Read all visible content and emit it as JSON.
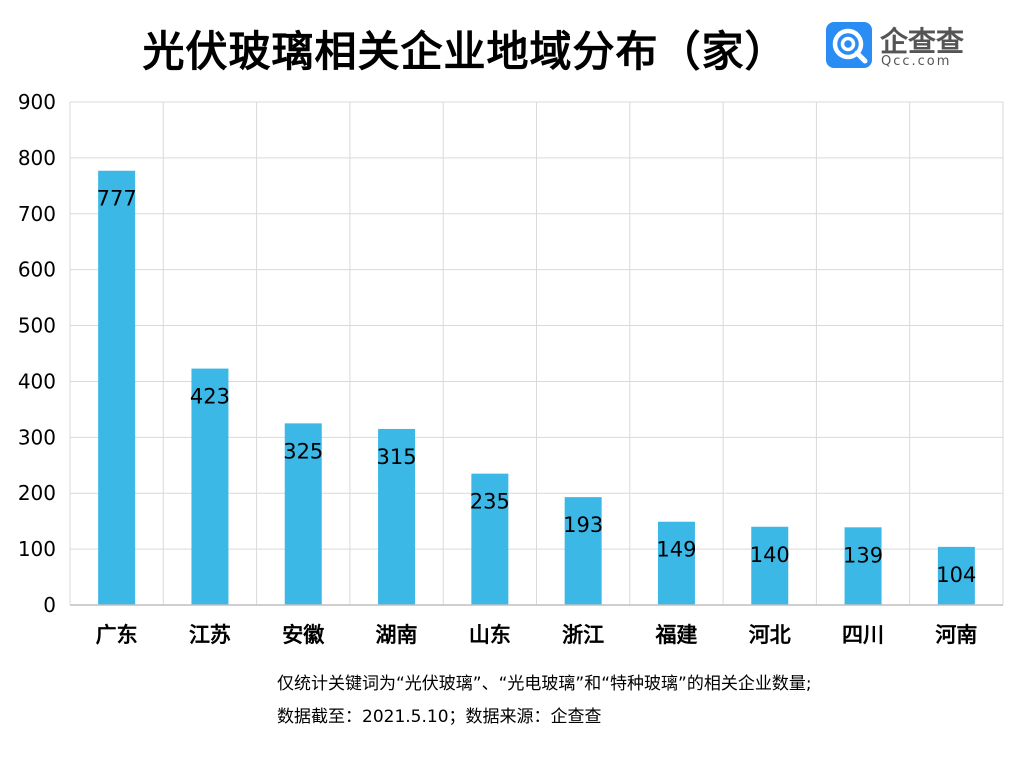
{
  "title": "光伏玻璃相关企业地域分布（家）",
  "logo": {
    "name": "企查查",
    "domain": "Qcc.com",
    "icon": "qcc-logo-icon",
    "color": "#2a8df3"
  },
  "colors": {
    "bar": "#3cb8e6",
    "grid": "#d9d9d9",
    "axis": "#bfbfbf",
    "text": "#000000"
  },
  "chart_data": {
    "type": "bar",
    "title": "光伏玻璃相关企业地域分布（家）",
    "xlabel": "",
    "ylabel": "",
    "categories": [
      "广东",
      "江苏",
      "安徽",
      "湖南",
      "山东",
      "浙江",
      "福建",
      "河北",
      "四川",
      "河南"
    ],
    "values": [
      777,
      423,
      325,
      315,
      235,
      193,
      149,
      140,
      139,
      104
    ],
    "ylim": [
      0,
      900
    ],
    "yticks": [
      0,
      100,
      200,
      300,
      400,
      500,
      600,
      700,
      800,
      900
    ],
    "grid": true,
    "legend": "none",
    "data_labels": true
  },
  "notes": [
    "仅统计关键词为“光伏玻璃”、“光电玻璃”和“特种玻璃”的相关企业数量;",
    "数据截至：2021.5.10；数据来源：企查查"
  ]
}
